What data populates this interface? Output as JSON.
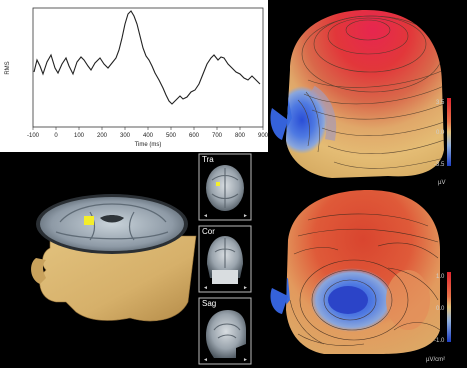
{
  "waveform": {
    "ylabel": "RMS",
    "xlabel": "Time (ms)",
    "xticks": [
      "-100",
      "0",
      "100",
      "200",
      "300",
      "400",
      "500",
      "600",
      "700",
      "800",
      "900"
    ],
    "color": "#222222"
  },
  "mri": {
    "views": [
      {
        "label": "Tra"
      },
      {
        "label": "Cor"
      },
      {
        "label": "Sag"
      }
    ],
    "marker_color": "#f4ee2a"
  },
  "topomap": {
    "top_colorbar": {
      "ticks": [
        "3.5",
        "0.0",
        "-3.5"
      ],
      "unit": "µV"
    },
    "bottom_colorbar": {
      "ticks": [
        "1.0",
        "0.0",
        "-1.0"
      ],
      "unit": "µV/cm²"
    },
    "colors": {
      "positive": "#e0262a",
      "neutral": "#e2ba6f",
      "negative": "#2a5fd8"
    }
  }
}
